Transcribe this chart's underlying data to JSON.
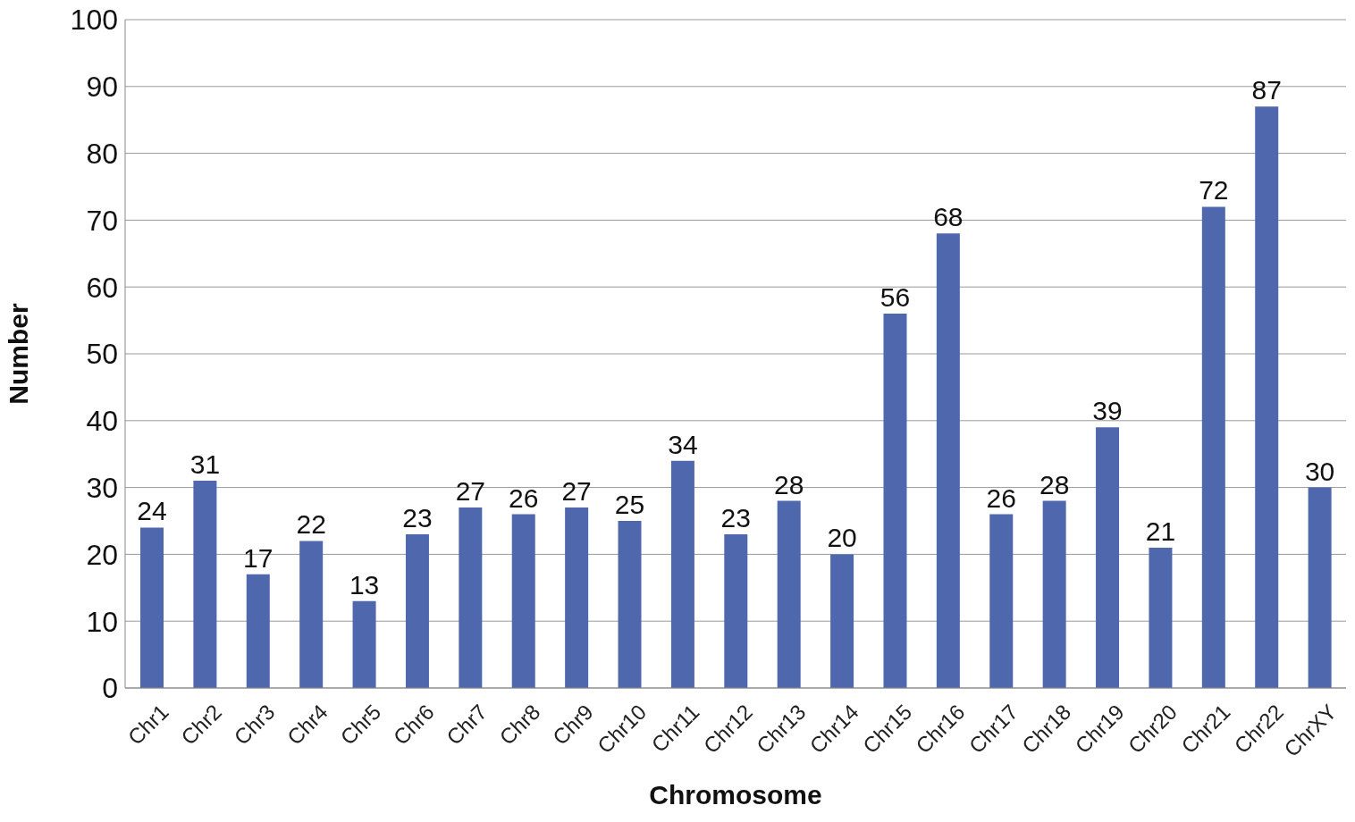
{
  "chart_data": {
    "type": "bar",
    "xlabel": "Chromosome",
    "ylabel": "Number",
    "categories": [
      "Chr1",
      "Chr2",
      "Chr3",
      "Chr4",
      "Chr5",
      "Chr6",
      "Chr7",
      "Chr8",
      "Chr9",
      "Chr10",
      "Chr11",
      "Chr12",
      "Chr13",
      "Chr14",
      "Chr15",
      "Chr16",
      "Chr17",
      "Chr18",
      "Chr19",
      "Chr20",
      "Chr21",
      "Chr22",
      "ChrXY"
    ],
    "values": [
      24,
      31,
      17,
      22,
      13,
      23,
      27,
      26,
      27,
      25,
      34,
      23,
      28,
      20,
      56,
      68,
      26,
      28,
      39,
      21,
      72,
      87,
      30
    ],
    "color": "#4f67ad",
    "ylim": [
      0,
      100
    ],
    "yticks": [
      0,
      10,
      20,
      30,
      40,
      50,
      60,
      70,
      80,
      90,
      100
    ],
    "grid": "y",
    "data_labels": true
  }
}
